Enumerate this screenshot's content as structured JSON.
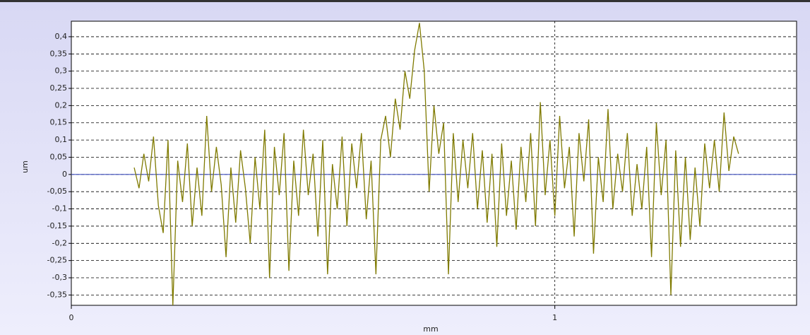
{
  "chart_data": {
    "type": "line",
    "xlabel": "mm",
    "ylabel": "um",
    "color": "#7f7a00",
    "xlim": [
      0,
      1.5
    ],
    "ylim": [
      -0.38,
      0.445
    ],
    "xticks": [
      0,
      1
    ],
    "yticks": [
      {
        "value": -0.35,
        "label": "-0,35"
      },
      {
        "value": -0.3,
        "label": "-0,3"
      },
      {
        "value": -0.25,
        "label": "-0,25"
      },
      {
        "value": -0.2,
        "label": "-0,2"
      },
      {
        "value": -0.15,
        "label": "-0,15"
      },
      {
        "value": -0.1,
        "label": "-0,1"
      },
      {
        "value": -0.05,
        "label": "-0,05"
      },
      0,
      {
        "value": 0.05,
        "label": "0,05"
      },
      {
        "value": 0.1,
        "label": "0,1"
      },
      {
        "value": 0.15,
        "label": "0,15"
      },
      {
        "value": 0.2,
        "label": "0,2"
      },
      {
        "value": 0.25,
        "label": "0,25"
      },
      {
        "value": 0.3,
        "label": "0,3"
      },
      {
        "value": 0.35,
        "label": "0,35"
      },
      {
        "value": 0.4,
        "label": "0,4"
      }
    ],
    "grid": true,
    "x": [
      0.13,
      0.14,
      0.15,
      0.16,
      0.17,
      0.18,
      0.19,
      0.2,
      0.21,
      0.22,
      0.23,
      0.24,
      0.25,
      0.26,
      0.27,
      0.28,
      0.29,
      0.3,
      0.31,
      0.32,
      0.33,
      0.34,
      0.35,
      0.36,
      0.37,
      0.38,
      0.39,
      0.4,
      0.41,
      0.42,
      0.43,
      0.44,
      0.45,
      0.46,
      0.47,
      0.48,
      0.49,
      0.5,
      0.51,
      0.52,
      0.53,
      0.54,
      0.55,
      0.56,
      0.57,
      0.58,
      0.59,
      0.6,
      0.61,
      0.62,
      0.63,
      0.64,
      0.65,
      0.66,
      0.67,
      0.68,
      0.69,
      0.7,
      0.71,
      0.72,
      0.73,
      0.74,
      0.75,
      0.76,
      0.77,
      0.78,
      0.79,
      0.8,
      0.81,
      0.82,
      0.83,
      0.84,
      0.85,
      0.86,
      0.87,
      0.88,
      0.89,
      0.9,
      0.91,
      0.92,
      0.93,
      0.94,
      0.95,
      0.96,
      0.97,
      0.98,
      0.99,
      1.0,
      1.01,
      1.02,
      1.03,
      1.04,
      1.05,
      1.06,
      1.07,
      1.08,
      1.09,
      1.1,
      1.11,
      1.12,
      1.13,
      1.14,
      1.15,
      1.16,
      1.17,
      1.18,
      1.19,
      1.2,
      1.21,
      1.22,
      1.23,
      1.24,
      1.25,
      1.26,
      1.27,
      1.28,
      1.29,
      1.3,
      1.31,
      1.32,
      1.33,
      1.34,
      1.35,
      1.36,
      1.37,
      1.38
    ],
    "values": [
      0.02,
      -0.04,
      0.06,
      -0.02,
      0.11,
      -0.09,
      -0.17,
      0.1,
      -0.38,
      0.04,
      -0.08,
      0.09,
      -0.15,
      0.02,
      -0.12,
      0.17,
      -0.05,
      0.08,
      -0.03,
      -0.24,
      0.02,
      -0.14,
      0.07,
      -0.04,
      -0.2,
      0.05,
      -0.1,
      0.13,
      -0.3,
      0.08,
      -0.06,
      0.12,
      -0.28,
      0.04,
      -0.12,
      0.13,
      -0.06,
      0.06,
      -0.18,
      0.1,
      -0.29,
      0.03,
      -0.1,
      0.11,
      -0.15,
      0.09,
      -0.04,
      0.12,
      -0.13,
      0.04,
      -0.29,
      0.1,
      0.17,
      0.05,
      0.22,
      0.13,
      0.3,
      0.22,
      0.36,
      0.44,
      0.3,
      -0.05,
      0.2,
      0.06,
      0.15,
      -0.29,
      0.12,
      -0.08,
      0.1,
      -0.04,
      0.12,
      -0.1,
      0.07,
      -0.14,
      0.06,
      -0.21,
      0.09,
      -0.12,
      0.04,
      -0.16,
      0.08,
      -0.08,
      0.12,
      -0.15,
      0.21,
      -0.06,
      0.1,
      -0.12,
      0.17,
      -0.04,
      0.08,
      -0.18,
      0.12,
      -0.02,
      0.16,
      -0.23,
      0.05,
      -0.08,
      0.19,
      -0.1,
      0.06,
      -0.05,
      0.12,
      -0.12,
      0.03,
      -0.1,
      0.08,
      -0.24,
      0.15,
      -0.06,
      0.1,
      -0.35,
      0.07,
      -0.21,
      0.05,
      -0.19,
      0.02,
      -0.15,
      0.09,
      -0.04,
      0.1,
      -0.05,
      0.18,
      0.01,
      0.11,
      0.06
    ]
  }
}
